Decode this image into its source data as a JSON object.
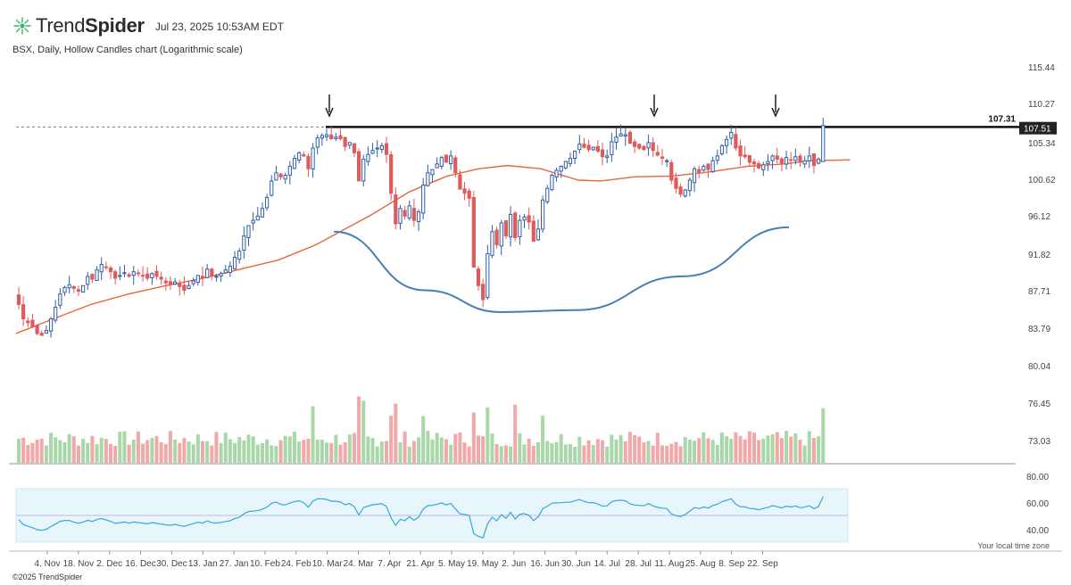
{
  "header": {
    "brand_light": "Trend",
    "brand_bold": "Spider",
    "timestamp": "Jul 23, 2025 10:53AM EDT",
    "logo_icon": "trendspider-logo-icon"
  },
  "subtitle": "BSX, Daily, Hollow Candles chart (Logarithmic scale)",
  "copyright": "©2025 TrendSpider",
  "timezone_note": "Your local time zone",
  "colors": {
    "up": "#2f5fa8",
    "down": "#e05a5a",
    "ma": "#e8663d",
    "cup": "#4a7fb0",
    "rsi": "#38a8d8",
    "rsi_band": "#e6f6fb",
    "vol_up": "#a8d8a8",
    "vol_down": "#f2a8a8"
  },
  "chart_data": {
    "type": "candlestick",
    "symbol": "BSX",
    "scale": "log",
    "price_ticks": [
      "115.44",
      "110.27",
      "105.34",
      "100.62",
      "96.12",
      "91.82",
      "87.71",
      "83.79",
      "80.04",
      "76.45",
      "73.03"
    ],
    "rsi_ticks": [
      "80.00",
      "60.00",
      "40.00"
    ],
    "x_ticks": [
      "4. Nov",
      "18. Nov",
      "2. Dec",
      "16. Dec",
      "30. Dec",
      "13. Jan",
      "27. Jan",
      "10. Feb",
      "24. Feb",
      "10. Mar",
      "24. Mar",
      "7. Apr",
      "21. Apr",
      "5. May",
      "19. May",
      "2. Jun",
      "16. Jun",
      "30. Jun",
      "14. Jul",
      "28. Jul",
      "11. Aug",
      "25. Aug",
      "8. Sep",
      "22. Sep"
    ],
    "resistance": {
      "value": 107.31,
      "label": "107.31"
    },
    "last_price": {
      "value": 107.51,
      "label": "107.51"
    },
    "arrows_at": [
      "Feb 5",
      "May 20",
      "Jul 1"
    ],
    "rsi_band": [
      30,
      70
    ],
    "rsi_mid": 50,
    "closes": [
      86.5,
      85.0,
      84.6,
      84.2,
      83.5,
      83.3,
      83.8,
      85.0,
      86.2,
      87.6,
      88.3,
      88.6,
      88.2,
      87.9,
      88.5,
      89.5,
      89.2,
      90.2,
      90.8,
      90.5,
      90.0,
      89.3,
      89.6,
      89.9,
      89.5,
      90.0,
      89.8,
      89.6,
      89.3,
      89.8,
      89.5,
      89.2,
      88.8,
      88.6,
      88.9,
      88.4,
      88.0,
      88.5,
      89.0,
      89.6,
      89.3,
      90.3,
      89.6,
      89.5,
      89.8,
      90.2,
      90.6,
      91.6,
      92.3,
      94.0,
      95.2,
      95.8,
      96.3,
      97.2,
      98.5,
      100.5,
      101.5,
      101.0,
      101.2,
      102.3,
      103.3,
      104.0,
      103.6,
      102.0,
      104.6,
      105.9,
      106.2,
      106.3,
      105.8,
      106.0,
      105.8,
      104.8,
      105.3,
      104.0,
      100.5,
      103.2,
      103.8,
      104.3,
      104.6,
      104.9,
      103.8,
      99.0,
      95.4,
      97.2,
      96.3,
      97.5,
      95.8,
      96.8,
      100.0,
      101.5,
      101.9,
      102.6,
      103.4,
      102.8,
      103.6,
      101.5,
      99.5,
      99.0,
      98.4,
      90.5,
      88.5,
      87.0,
      92.0,
      94.5,
      93.0,
      95.5,
      94.0,
      96.5,
      93.8,
      95.8,
      96.2,
      95.6,
      93.4,
      94.8,
      98.2,
      99.6,
      101.2,
      101.8,
      102.3,
      102.9,
      103.3,
      104.2,
      105.1,
      104.7,
      104.4,
      104.7,
      104.2,
      103.5,
      103.6,
      105.4,
      106.0,
      106.4,
      106.3,
      105.2,
      104.8,
      104.6,
      104.4,
      105.3,
      104.3,
      103.7,
      103.3,
      103.0,
      100.6,
      99.6,
      98.9,
      99.4,
      100.6,
      102.0,
      101.6,
      102.3,
      101.9,
      103.0,
      103.6,
      104.9,
      105.7,
      106.6,
      104.6,
      103.6,
      103.5,
      102.8,
      102.6,
      102.1,
      102.5,
      102.9,
      103.6,
      103.2,
      102.7,
      103.4,
      103.1,
      103.5,
      102.8,
      103.0,
      103.6,
      102.4,
      103.2,
      107.51
    ],
    "ma": [
      [
        0,
        83.5
      ],
      [
        20,
        85.0
      ],
      [
        40,
        86.5
      ],
      [
        60,
        87.6
      ],
      [
        80,
        88.5
      ],
      [
        100,
        89.3
      ],
      [
        120,
        90.3
      ],
      [
        140,
        91.3
      ],
      [
        160,
        93.0
      ],
      [
        190,
        96.5
      ],
      [
        210,
        99.2
      ],
      [
        230,
        101.1
      ],
      [
        247,
        102.0
      ],
      [
        262,
        102.4
      ],
      [
        280,
        102.0
      ],
      [
        300,
        100.6
      ],
      [
        312,
        100.5
      ],
      [
        330,
        101.0
      ],
      [
        350,
        101.1
      ],
      [
        370,
        101.6
      ],
      [
        390,
        102.3
      ],
      [
        410,
        102.6
      ],
      [
        424,
        103.0
      ],
      [
        445,
        103.1
      ]
    ],
    "cup": [
      [
        0,
        94.5
      ],
      [
        60,
        88.0
      ],
      [
        110,
        85.7
      ],
      [
        160,
        85.9
      ],
      [
        230,
        89.5
      ],
      [
        300,
        95.0
      ]
    ],
    "cup_x_start": 357
  }
}
